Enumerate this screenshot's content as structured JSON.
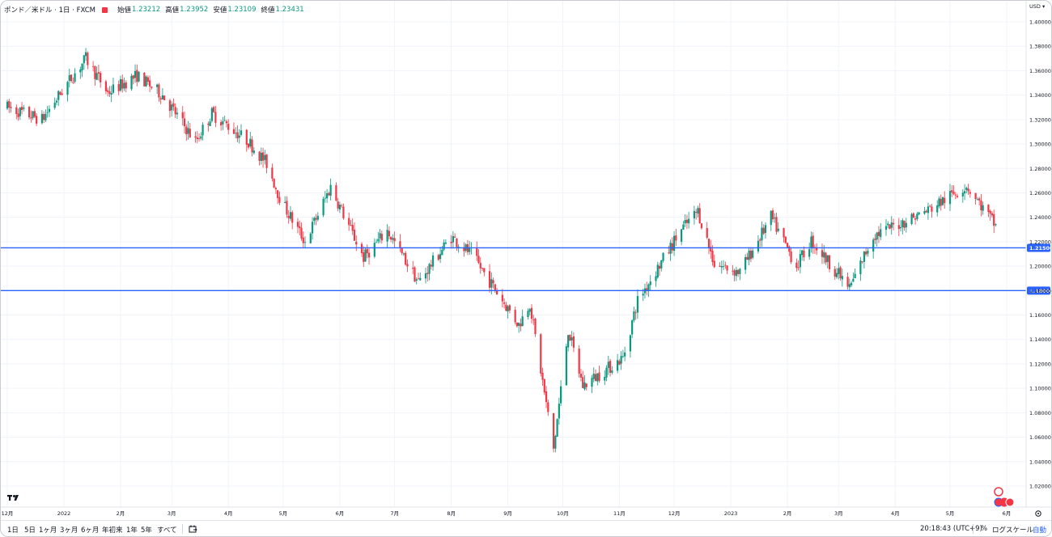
{
  "legend": {
    "symbol": "ポンド／米ドル · 1日 · FXCM",
    "open_label": "始値",
    "open": "1.23212",
    "high_label": "高値",
    "high": "1.23952",
    "low_label": "安値",
    "low": "1.23109",
    "close_label": "終値",
    "close": "1.23431"
  },
  "colors": {
    "up": "#089981",
    "down": "#f23645",
    "hline": "#2962ff",
    "grid": "#f0f3fa",
    "axis_text": "#131722"
  },
  "chart_data": {
    "type": "candlestick",
    "currency": "USD",
    "ylim": [
      1.0,
      1.41
    ],
    "yticks": [
      "1.40000",
      "1.38000",
      "1.36000",
      "1.34000",
      "1.32000",
      "1.30000",
      "1.28000",
      "1.26000",
      "1.24000",
      "1.22000",
      "1.20000",
      "1.18000",
      "1.16000",
      "1.14000",
      "1.12000",
      "1.10000",
      "1.08000",
      "1.06000",
      "1.04000",
      "1.02000"
    ],
    "x_start": "2021-12-01",
    "x_end": "2023-06-10",
    "xticks": [
      {
        "date": "2021-12-01",
        "label": "12月"
      },
      {
        "date": "2022-01-01",
        "label": "2022"
      },
      {
        "date": "2022-02-01",
        "label": "2月"
      },
      {
        "date": "2022-03-01",
        "label": "3月"
      },
      {
        "date": "2022-04-01",
        "label": "4月"
      },
      {
        "date": "2022-05-01",
        "label": "5月"
      },
      {
        "date": "2022-06-01",
        "label": "6月"
      },
      {
        "date": "2022-07-01",
        "label": "7月"
      },
      {
        "date": "2022-08-01",
        "label": "8月"
      },
      {
        "date": "2022-09-01",
        "label": "9月"
      },
      {
        "date": "2022-10-01",
        "label": "10月"
      },
      {
        "date": "2022-11-01",
        "label": "11月"
      },
      {
        "date": "2022-12-01",
        "label": "12月"
      },
      {
        "date": "2023-01-01",
        "label": "2023"
      },
      {
        "date": "2023-02-01",
        "label": "2月"
      },
      {
        "date": "2023-03-01",
        "label": "3月"
      },
      {
        "date": "2023-04-01",
        "label": "4月"
      },
      {
        "date": "2023-05-01",
        "label": "5月"
      },
      {
        "date": "2023-06-01",
        "label": "6月"
      }
    ],
    "horizontal_lines": [
      {
        "value": 1.215,
        "label": "1.21500"
      },
      {
        "value": 1.18,
        "label": "1.18000"
      }
    ],
    "anchors": [
      [
        "2021-12-01",
        1.33
      ],
      [
        "2021-12-20",
        1.32
      ],
      [
        "2022-01-04",
        1.352
      ],
      [
        "2022-01-13",
        1.37
      ],
      [
        "2022-01-25",
        1.342
      ],
      [
        "2022-02-10",
        1.356
      ],
      [
        "2022-02-24",
        1.34
      ],
      [
        "2022-03-14",
        1.302
      ],
      [
        "2022-03-23",
        1.325
      ],
      [
        "2022-04-12",
        1.302
      ],
      [
        "2022-04-22",
        1.284
      ],
      [
        "2022-04-30",
        1.253
      ],
      [
        "2022-05-13",
        1.22
      ],
      [
        "2022-05-27",
        1.265
      ],
      [
        "2022-06-14",
        1.207
      ],
      [
        "2022-06-27",
        1.229
      ],
      [
        "2022-07-14",
        1.187
      ],
      [
        "2022-08-01",
        1.224
      ],
      [
        "2022-08-12",
        1.21
      ],
      [
        "2022-09-07",
        1.152
      ],
      [
        "2022-09-13",
        1.17
      ],
      [
        "2022-09-26",
        1.05
      ],
      [
        "2022-10-04",
        1.148
      ],
      [
        "2022-10-12",
        1.102
      ],
      [
        "2022-11-03",
        1.125
      ],
      [
        "2022-11-11",
        1.172
      ],
      [
        "2022-12-05",
        1.23
      ],
      [
        "2022-12-14",
        1.245
      ],
      [
        "2022-12-23",
        1.202
      ],
      [
        "2023-01-06",
        1.195
      ],
      [
        "2023-01-23",
        1.24
      ],
      [
        "2023-02-06",
        1.2
      ],
      [
        "2023-02-14",
        1.221
      ],
      [
        "2023-03-07",
        1.182
      ],
      [
        "2023-03-20",
        1.225
      ],
      [
        "2023-04-18",
        1.245
      ],
      [
        "2023-05-10",
        1.266
      ],
      [
        "2023-05-26",
        1.233
      ]
    ],
    "last": {
      "open": 1.23212,
      "high": 1.23952,
      "low": 1.23109,
      "close": 1.23431
    }
  },
  "bottombar": {
    "ranges": [
      "1日",
      "5日",
      "1ヶ月",
      "3ヶ月",
      "6ヶ月",
      "年初来",
      "1年",
      "5年",
      "すべて"
    ],
    "clock": "20:18:43 (UTC+9)",
    "percent": "%",
    "log": "ログスケール",
    "auto": "自動"
  },
  "icons": {
    "logo": "tv-logo-icon",
    "calendar": "goto-date-icon",
    "settings": "gear-icon",
    "events": "events-icon"
  }
}
